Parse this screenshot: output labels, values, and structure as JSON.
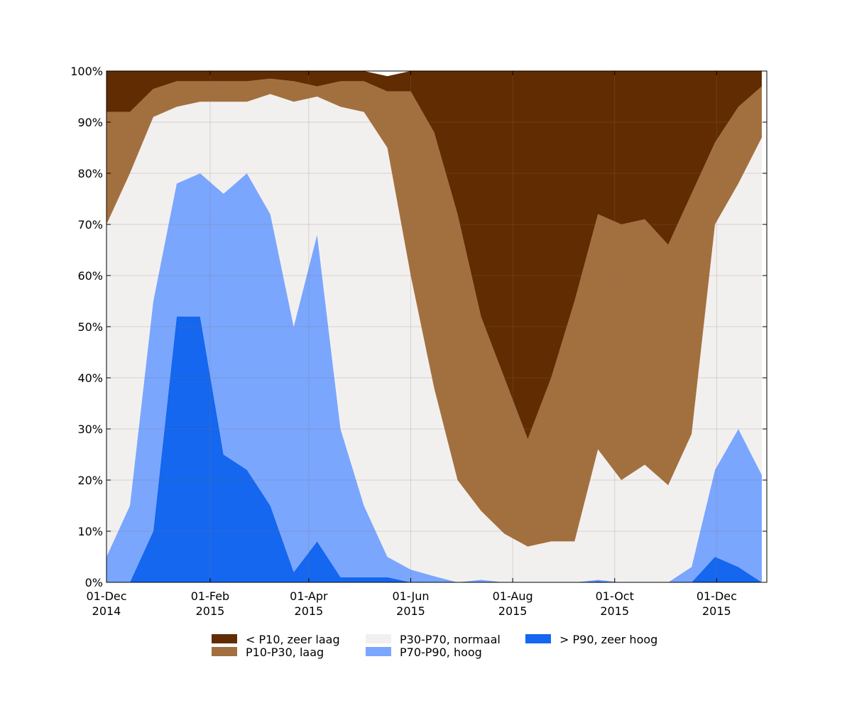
{
  "chart_data": {
    "type": "stacked_area",
    "x": [
      "2014-12-01",
      "2014-12-15",
      "2014-12-29",
      "2015-01-12",
      "2015-01-26",
      "2015-02-09",
      "2015-02-23",
      "2015-03-09",
      "2015-03-23",
      "2015-04-06",
      "2015-04-20",
      "2015-05-04",
      "2015-05-18",
      "2015-06-01",
      "2015-06-15",
      "2015-06-29",
      "2015-07-13",
      "2015-07-27",
      "2015-08-10",
      "2015-08-24",
      "2015-09-07",
      "2015-09-21",
      "2015-10-05",
      "2015-10-19",
      "2015-11-02",
      "2015-11-16",
      "2015-11-30",
      "2015-12-14",
      "2015-12-28"
    ],
    "series": [
      {
        "name": "< P10, zeer laag",
        "color": "#612c02",
        "values": [
          8,
          8,
          3.5,
          2,
          2,
          2,
          2,
          1.5,
          2,
          3,
          2,
          2,
          3,
          4,
          12,
          28,
          48,
          60,
          72,
          60,
          45,
          28,
          30,
          29,
          34,
          24,
          14,
          7,
          3
        ]
      },
      {
        "name": "P10-P30, laag",
        "color": "#a2703f",
        "values": [
          22,
          12,
          5.5,
          5,
          4,
          4,
          4,
          3,
          4,
          2,
          5,
          6,
          11,
          36,
          50,
          52,
          38,
          30.5,
          21,
          32,
          47,
          46,
          50,
          48,
          47,
          47,
          16,
          15,
          10
        ]
      },
      {
        "name": "P30-P70, normaal",
        "color": "#f2f0ef",
        "values": [
          65,
          65,
          36,
          15,
          14,
          18,
          14,
          23.5,
          44,
          27,
          63,
          77,
          80,
          57.5,
          36.8,
          20,
          13.5,
          9.5,
          7,
          8,
          8,
          25.5,
          20,
          23,
          19,
          26,
          48,
          48,
          66
        ]
      },
      {
        "name": "P70-P90, hoog",
        "color": "#7aa6fe",
        "values": [
          5,
          15,
          45,
          26,
          28,
          51,
          58,
          57,
          48,
          60,
          29,
          14,
          4,
          2.5,
          1.2,
          0,
          0.5,
          0,
          0,
          0,
          0,
          0.3,
          0,
          0,
          0,
          3,
          17,
          27,
          21
        ]
      },
      {
        "name": "> P90, zeer hoog",
        "color": "#1467ee",
        "values": [
          0,
          0,
          10,
          52,
          52,
          25,
          22,
          15,
          2,
          8,
          1,
          1,
          1,
          0,
          0,
          0,
          0,
          0,
          0,
          0,
          0,
          0.2,
          0,
          0,
          0,
          0,
          5,
          3,
          0
        ]
      }
    ],
    "xlim": [
      "2014-12-01",
      "2015-12-31"
    ],
    "xticks": [
      {
        "value": "2014-12-01",
        "label": [
          "01-Dec",
          "2014"
        ]
      },
      {
        "value": "2015-02-01",
        "label": [
          "01-Feb",
          "2015"
        ]
      },
      {
        "value": "2015-04-01",
        "label": [
          "01-Apr",
          "2015"
        ]
      },
      {
        "value": "2015-06-01",
        "label": [
          "01-Jun",
          "2015"
        ]
      },
      {
        "value": "2015-08-01",
        "label": [
          "01-Aug",
          "2015"
        ]
      },
      {
        "value": "2015-10-01",
        "label": [
          "01-Oct",
          "2015"
        ]
      },
      {
        "value": "2015-12-01",
        "label": [
          "01-Dec",
          "2015"
        ]
      }
    ],
    "ylim": [
      0,
      100
    ],
    "yticks": [
      {
        "value": 0,
        "label": "0%"
      },
      {
        "value": 10,
        "label": "10%"
      },
      {
        "value": 20,
        "label": "20%"
      },
      {
        "value": 30,
        "label": "30%"
      },
      {
        "value": 40,
        "label": "40%"
      },
      {
        "value": 50,
        "label": "50%"
      },
      {
        "value": 60,
        "label": "60%"
      },
      {
        "value": 70,
        "label": "70%"
      },
      {
        "value": 80,
        "label": "80%"
      },
      {
        "value": 90,
        "label": "90%"
      },
      {
        "value": 100,
        "label": "100%"
      }
    ],
    "grid": true,
    "legend": "bottom"
  }
}
